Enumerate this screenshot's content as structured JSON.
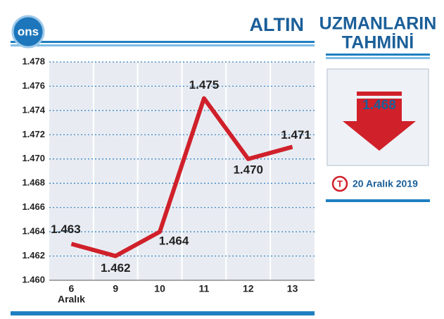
{
  "chart_data": {
    "type": "line",
    "badge": "ons",
    "title": "ALTIN",
    "categories": [
      "6",
      "9",
      "10",
      "11",
      "12",
      "13"
    ],
    "x_sublabel": "Aralık",
    "values": [
      1.463,
      1.462,
      1.464,
      1.475,
      1.47,
      1.471
    ],
    "value_labels": [
      "1.463",
      "1.462",
      "1.464",
      "1.475",
      "1.470",
      "1.471"
    ],
    "color": "#d0202a",
    "ylim": [
      1.46,
      1.478
    ],
    "yticks": [
      {
        "value": 1.46,
        "label": "1.460"
      },
      1.462,
      1.464,
      1.466,
      1.468,
      {
        "value": 1.47,
        "label": "1.470"
      },
      1.472,
      1.474,
      1.476,
      1.478
    ],
    "grid": true
  },
  "forecast": {
    "title_lines": [
      "UZMANLARIN",
      "TAHMİNİ"
    ],
    "value": "1.468",
    "logo_letter": "T",
    "date": "20 Aralık 2019"
  }
}
